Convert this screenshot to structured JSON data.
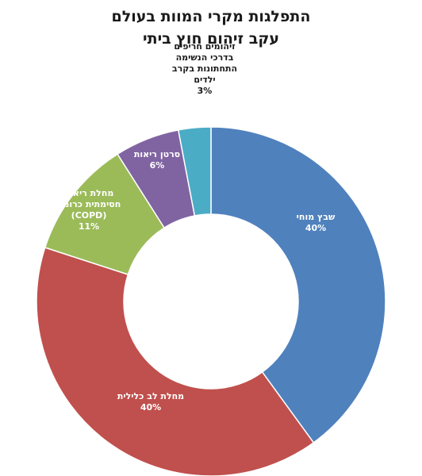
{
  "title": {
    "line1": "התפלגות מקרי המוות בעולם",
    "line2": "עקב זיהום חוץ ביתי"
  },
  "chart_data": {
    "type": "pie",
    "variant": "donut",
    "title": "התפלגות מקרי המוות בעולם עקב זיהום חוץ ביתי",
    "start": "top, clockwise",
    "slices": [
      {
        "label_lines": [
          "שבץ מוחי"
        ],
        "pct_text": "40%",
        "value": 40,
        "color": "#4f81bd",
        "label_color": "#ffffff"
      },
      {
        "label_lines": [
          "מחלת לב כלילית"
        ],
        "pct_text": "40%",
        "value": 40,
        "color": "#c0504d",
        "label_color": "#ffffff"
      },
      {
        "label_lines": [
          "מחלת ריאות",
          "חסימתית כרונית",
          "(COPD)"
        ],
        "pct_text": "11%",
        "value": 11,
        "color": "#9bbb59",
        "label_color": "#ffffff"
      },
      {
        "label_lines": [
          "סרטן ריאות"
        ],
        "pct_text": "6%",
        "value": 6,
        "color": "#8064a2",
        "label_color": "#ffffff"
      },
      {
        "label_lines": [
          "זיהומים חריפים",
          "בדרכי הנשימה",
          "התחתונות בקרב",
          "ילדים"
        ],
        "pct_text": "3%",
        "value": 3,
        "color": "#4bacc6",
        "label_color": "#1a1a1a"
      }
    ]
  }
}
